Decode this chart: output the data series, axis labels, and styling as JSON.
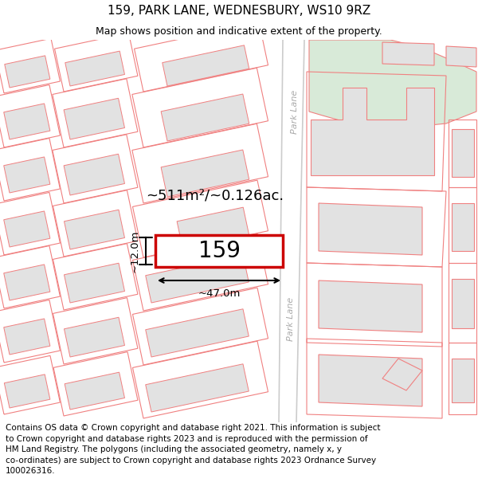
{
  "title": "159, PARK LANE, WEDNESBURY, WS10 9RZ",
  "subtitle": "Map shows position and indicative extent of the property.",
  "footer_line1": "Contains OS data © Crown copyright and database right 2021. This information is subject",
  "footer_line2": "to Crown copyright and database rights 2023 and is reproduced with the permission of",
  "footer_line3": "HM Land Registry. The polygons (including the associated geometry, namely x, y",
  "footer_line4": "co-ordinates) are subject to Crown copyright and database rights 2023 Ordnance Survey",
  "footer_line5": "100026316.",
  "bg_color": "#ffffff",
  "map_bg": "#ffffff",
  "area_text": "~511m²/~0.126ac.",
  "width_text": "~47.0m",
  "height_text": "~12.0m",
  "property_label": "159",
  "property_color": "#cc0000",
  "building_fill": "#e2e2e2",
  "building_stroke": "#f08080",
  "plot_stroke": "#f08080",
  "green_fill": "#d8ead8",
  "green_stroke": "#f08080",
  "road_label_color": "#aaaaaa",
  "title_fontsize": 11,
  "subtitle_fontsize": 9,
  "footer_fontsize": 7.5
}
